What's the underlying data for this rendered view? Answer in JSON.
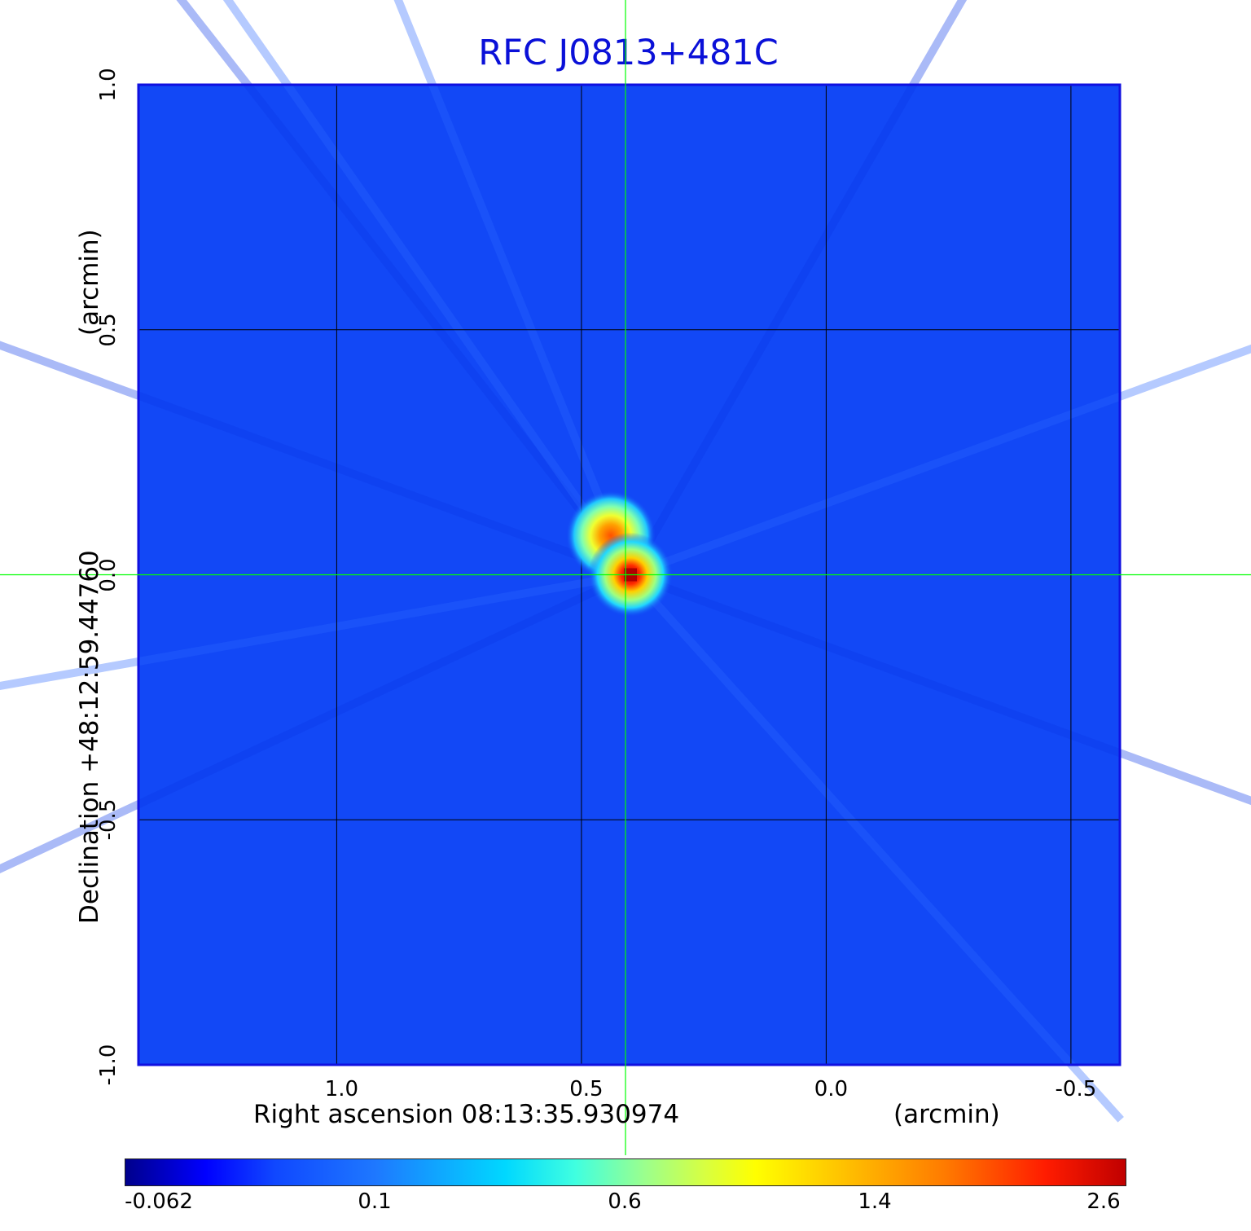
{
  "chart_data": {
    "type": "heatmap",
    "title": "RFC J0813+481C",
    "xlabel": "Right ascension  08:13:35.930974",
    "xlabel_unit": "(arcmin)",
    "ylabel": "Declination  +48:12:59.44760",
    "ylabel_unit": "(arcmin)",
    "xlim": [
      1.405,
      -0.6
    ],
    "ylim": [
      -1.0,
      1.0
    ],
    "x_ticks": [
      "1.0",
      "0.5",
      "0.0",
      "-0.5"
    ],
    "x_tick_values": [
      1.0,
      0.5,
      0.0,
      -0.5
    ],
    "y_ticks": [
      "-1.0",
      "-0.5",
      "0.0",
      "0.5",
      "1.0"
    ],
    "y_tick_values": [
      -1.0,
      -0.5,
      0.0,
      0.5,
      1.0
    ],
    "grid": true,
    "crosshair": {
      "x": 0.41,
      "y": 0.0,
      "color": "#00ff00"
    },
    "sources": [
      {
        "x": 0.4,
        "y": 0.0,
        "peak": 2.6
      },
      {
        "x": 0.44,
        "y": 0.08,
        "peak": 1.6
      }
    ],
    "colorbar": {
      "ticks": [
        "-0.062",
        "0.1",
        "0.6",
        "1.4",
        "2.6"
      ],
      "tick_values": [
        -0.062,
        0.1,
        0.6,
        1.4,
        2.6
      ],
      "colormap": "jet"
    },
    "background_color": "#1248f6",
    "frame_color": "#1010e0"
  }
}
